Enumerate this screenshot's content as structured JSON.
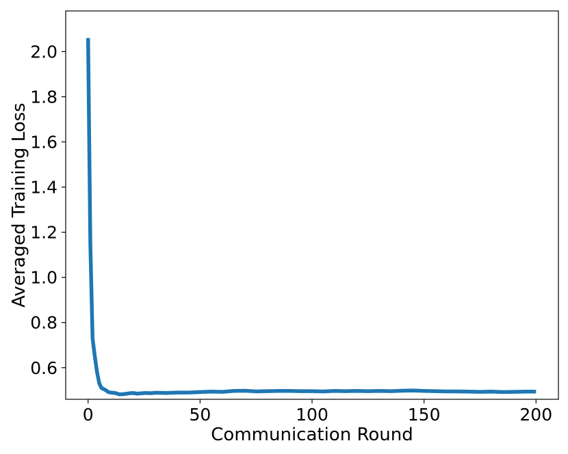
{
  "chart_data": {
    "type": "line",
    "title": "",
    "xlabel": "Communication Round",
    "ylabel": "Averaged Training Loss",
    "xlim": [
      -10,
      210
    ],
    "ylim": [
      0.46,
      2.18
    ],
    "xticks": [
      0,
      50,
      100,
      150,
      200
    ],
    "xtick_labels": [
      "0",
      "50",
      "100",
      "150",
      "200"
    ],
    "yticks": [
      0.6,
      0.8,
      1.0,
      1.2,
      1.4,
      1.6,
      1.8,
      2.0
    ],
    "ytick_labels": [
      "0.6",
      "0.8",
      "1.0",
      "1.2",
      "1.4",
      "1.6",
      "1.8",
      "2.0"
    ],
    "grid": false,
    "legend": "none",
    "series": [
      {
        "color": "#1f77b4",
        "x": [
          0,
          1,
          2,
          3,
          4,
          5,
          6,
          7,
          8,
          9,
          10,
          12,
          14,
          16,
          18,
          20,
          22,
          24,
          26,
          28,
          30,
          35,
          40,
          45,
          50,
          55,
          60,
          65,
          70,
          75,
          80,
          85,
          90,
          95,
          100,
          105,
          110,
          115,
          120,
          125,
          130,
          135,
          140,
          145,
          150,
          155,
          160,
          165,
          170,
          175,
          180,
          185,
          190,
          195,
          200
        ],
        "y": [
          2.06,
          1.15,
          0.73,
          0.65,
          0.58,
          0.53,
          0.51,
          0.505,
          0.5,
          0.492,
          0.49,
          0.488,
          0.482,
          0.483,
          0.486,
          0.488,
          0.485,
          0.487,
          0.488,
          0.487,
          0.489,
          0.488,
          0.49,
          0.49,
          0.492,
          0.494,
          0.493,
          0.497,
          0.498,
          0.495,
          0.496,
          0.497,
          0.497,
          0.496,
          0.496,
          0.495,
          0.497,
          0.496,
          0.497,
          0.496,
          0.497,
          0.496,
          0.498,
          0.499,
          0.497,
          0.496,
          0.495,
          0.495,
          0.494,
          0.493,
          0.494,
          0.492,
          0.493,
          0.494,
          0.494
        ]
      }
    ]
  }
}
